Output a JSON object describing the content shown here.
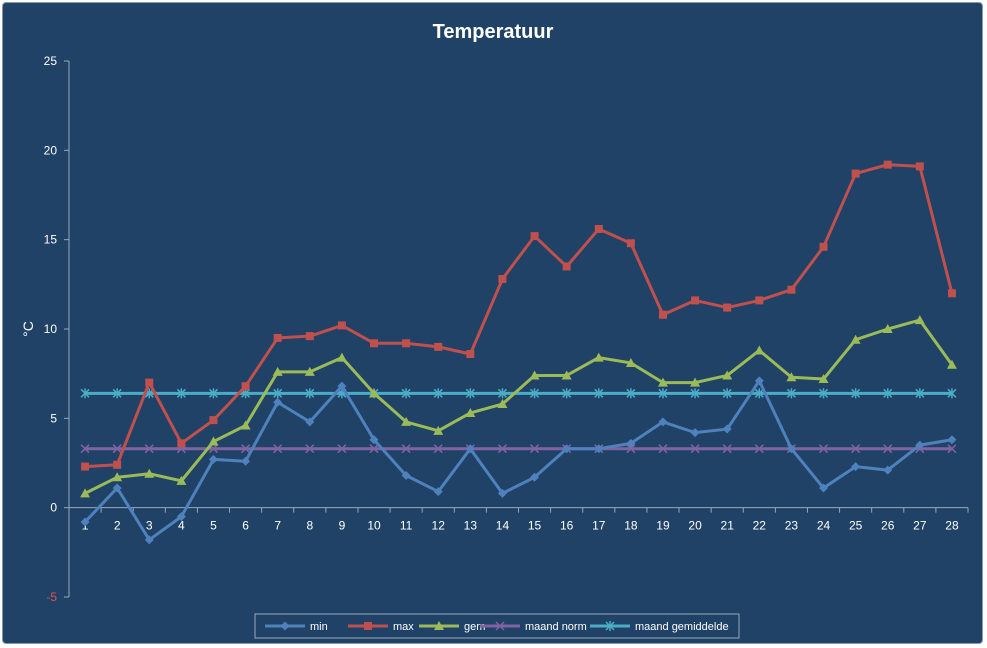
{
  "chart_data": {
    "type": "line",
    "title": "Temperatuur",
    "xlabel": "",
    "ylabel": "°C",
    "ylim": [
      -5,
      25
    ],
    "yticks": [
      -5,
      0,
      5,
      10,
      15,
      20,
      25
    ],
    "ytick_labels": [
      "-5",
      "0",
      "5",
      "10",
      "15",
      "20",
      "25"
    ],
    "categories": [
      "1",
      "2",
      "3",
      "4",
      "5",
      "6",
      "7",
      "8",
      "9",
      "10",
      "11",
      "12",
      "13",
      "14",
      "15",
      "16",
      "17",
      "18",
      "19",
      "20",
      "21",
      "22",
      "23",
      "24",
      "25",
      "26",
      "27",
      "28"
    ],
    "grid": false,
    "legend_position": "bottom",
    "series": [
      {
        "name": "min",
        "color": "#4f81bd",
        "marker": "diamond",
        "values": [
          -0.8,
          1.1,
          -1.8,
          -0.5,
          2.7,
          2.6,
          5.9,
          4.8,
          6.8,
          3.8,
          1.8,
          0.9,
          3.3,
          0.8,
          1.7,
          3.3,
          3.3,
          3.6,
          4.8,
          4.2,
          4.4,
          7.1,
          3.3,
          1.1,
          2.3,
          2.1,
          3.5,
          3.8
        ]
      },
      {
        "name": "max",
        "color": "#c0504d",
        "marker": "square",
        "values": [
          2.3,
          2.4,
          7.0,
          3.6,
          4.9,
          6.8,
          9.5,
          9.6,
          10.2,
          9.2,
          9.2,
          9.0,
          8.6,
          12.8,
          15.2,
          13.5,
          15.6,
          14.8,
          10.8,
          11.6,
          11.2,
          11.6,
          12.2,
          14.6,
          18.7,
          19.2,
          19.1,
          12.0
        ]
      },
      {
        "name": "gem",
        "color": "#9bbb59",
        "marker": "triangle",
        "values": [
          0.8,
          1.7,
          1.9,
          1.5,
          3.7,
          4.6,
          7.6,
          7.6,
          8.4,
          6.4,
          4.8,
          4.3,
          5.3,
          5.8,
          7.4,
          7.4,
          8.4,
          8.1,
          7.0,
          7.0,
          7.4,
          8.8,
          7.3,
          7.2,
          9.4,
          10.0,
          10.5,
          8.0
        ]
      },
      {
        "name": "maand norm",
        "color": "#8064a2",
        "marker": "x",
        "values": [
          3.3,
          3.3,
          3.3,
          3.3,
          3.3,
          3.3,
          3.3,
          3.3,
          3.3,
          3.3,
          3.3,
          3.3,
          3.3,
          3.3,
          3.3,
          3.3,
          3.3,
          3.3,
          3.3,
          3.3,
          3.3,
          3.3,
          3.3,
          3.3,
          3.3,
          3.3,
          3.3,
          3.3
        ]
      },
      {
        "name": "maand gemiddelde",
        "color": "#4bacc6",
        "marker": "star",
        "values": [
          6.4,
          6.4,
          6.4,
          6.4,
          6.4,
          6.4,
          6.4,
          6.4,
          6.4,
          6.4,
          6.4,
          6.4,
          6.4,
          6.4,
          6.4,
          6.4,
          6.4,
          6.4,
          6.4,
          6.4,
          6.4,
          6.4,
          6.4,
          6.4,
          6.4,
          6.4,
          6.4,
          6.4
        ]
      }
    ]
  }
}
